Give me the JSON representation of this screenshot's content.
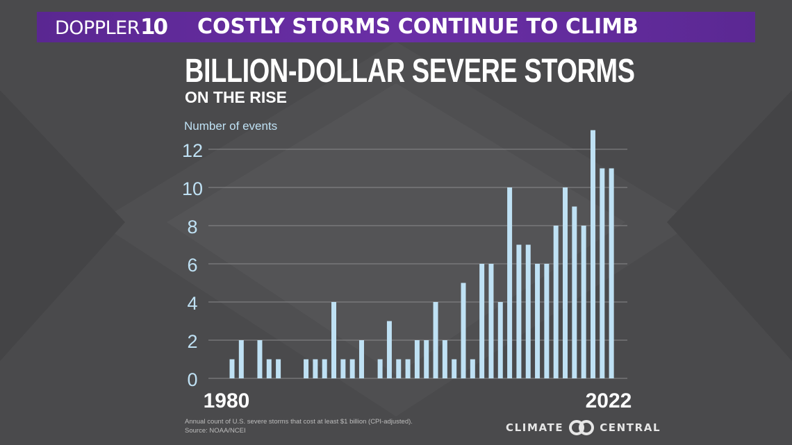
{
  "banner": {
    "logo_text": "DOPPLER",
    "logo_number": "10",
    "headline": "COSTLY STORMS CONTINUE TO CLIMB",
    "color": "#5f2b9c"
  },
  "graphic": {
    "title": "BILLION-DOLLAR SEVERE STORMS",
    "subtitle": "ON THE RISE",
    "footnote_line1": "Annual count of U.S. severe storms that cost at least $1 billion (CPI-adjusted).",
    "footnote_line2": "Source: NOAA/NCEI",
    "brand_left": "CLIMATE",
    "brand_right": "CENTRAL",
    "brand_icon": "climate-central-logo-icon"
  },
  "chart_data": {
    "type": "bar",
    "title": "BILLION-DOLLAR SEVERE STORMS",
    "subtitle": "ON THE RISE",
    "ylabel": "Number of events",
    "xlabel": "",
    "x_tick_labels": [
      "1980",
      "2022"
    ],
    "categories": [
      1980,
      1981,
      1982,
      1983,
      1984,
      1985,
      1986,
      1987,
      1988,
      1989,
      1990,
      1991,
      1992,
      1993,
      1994,
      1995,
      1996,
      1997,
      1998,
      1999,
      2000,
      2001,
      2002,
      2003,
      2004,
      2005,
      2006,
      2007,
      2008,
      2009,
      2010,
      2011,
      2012,
      2013,
      2014,
      2015,
      2016,
      2017,
      2018,
      2019,
      2020,
      2021,
      2022
    ],
    "values": [
      1,
      2,
      0,
      2,
      1,
      1,
      0,
      0,
      1,
      1,
      1,
      4,
      1,
      1,
      2,
      0,
      1,
      3,
      1,
      1,
      2,
      2,
      4,
      2,
      1,
      5,
      1,
      6,
      6,
      4,
      10,
      7,
      7,
      6,
      6,
      8,
      10,
      9,
      8,
      13,
      11,
      11,
      0
    ],
    "yticks": [
      0,
      2,
      4,
      6,
      8,
      10,
      12
    ],
    "ylim": [
      0,
      12
    ],
    "grid": true,
    "bar_color": "#bfe1f4",
    "grid_color": "#8a8a8c"
  }
}
